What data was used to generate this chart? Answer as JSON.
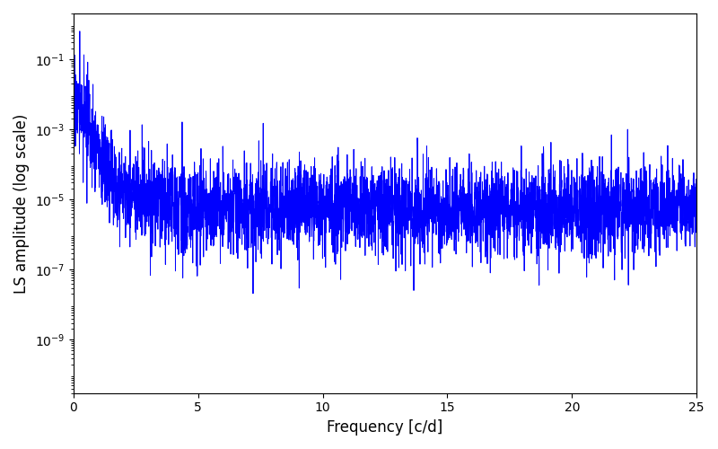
{
  "xlabel": "Frequency [c/d]",
  "ylabel": "LS amplitude (log scale)",
  "xlim": [
    0,
    25
  ],
  "ylim": [
    3e-11,
    2.0
  ],
  "line_color": "#0000ff",
  "line_width": 0.7,
  "freq_max": 25.0,
  "n_points": 4000,
  "seed": 17,
  "background_color": "#ffffff",
  "figsize": [
    8.0,
    5.0
  ],
  "dpi": 100
}
